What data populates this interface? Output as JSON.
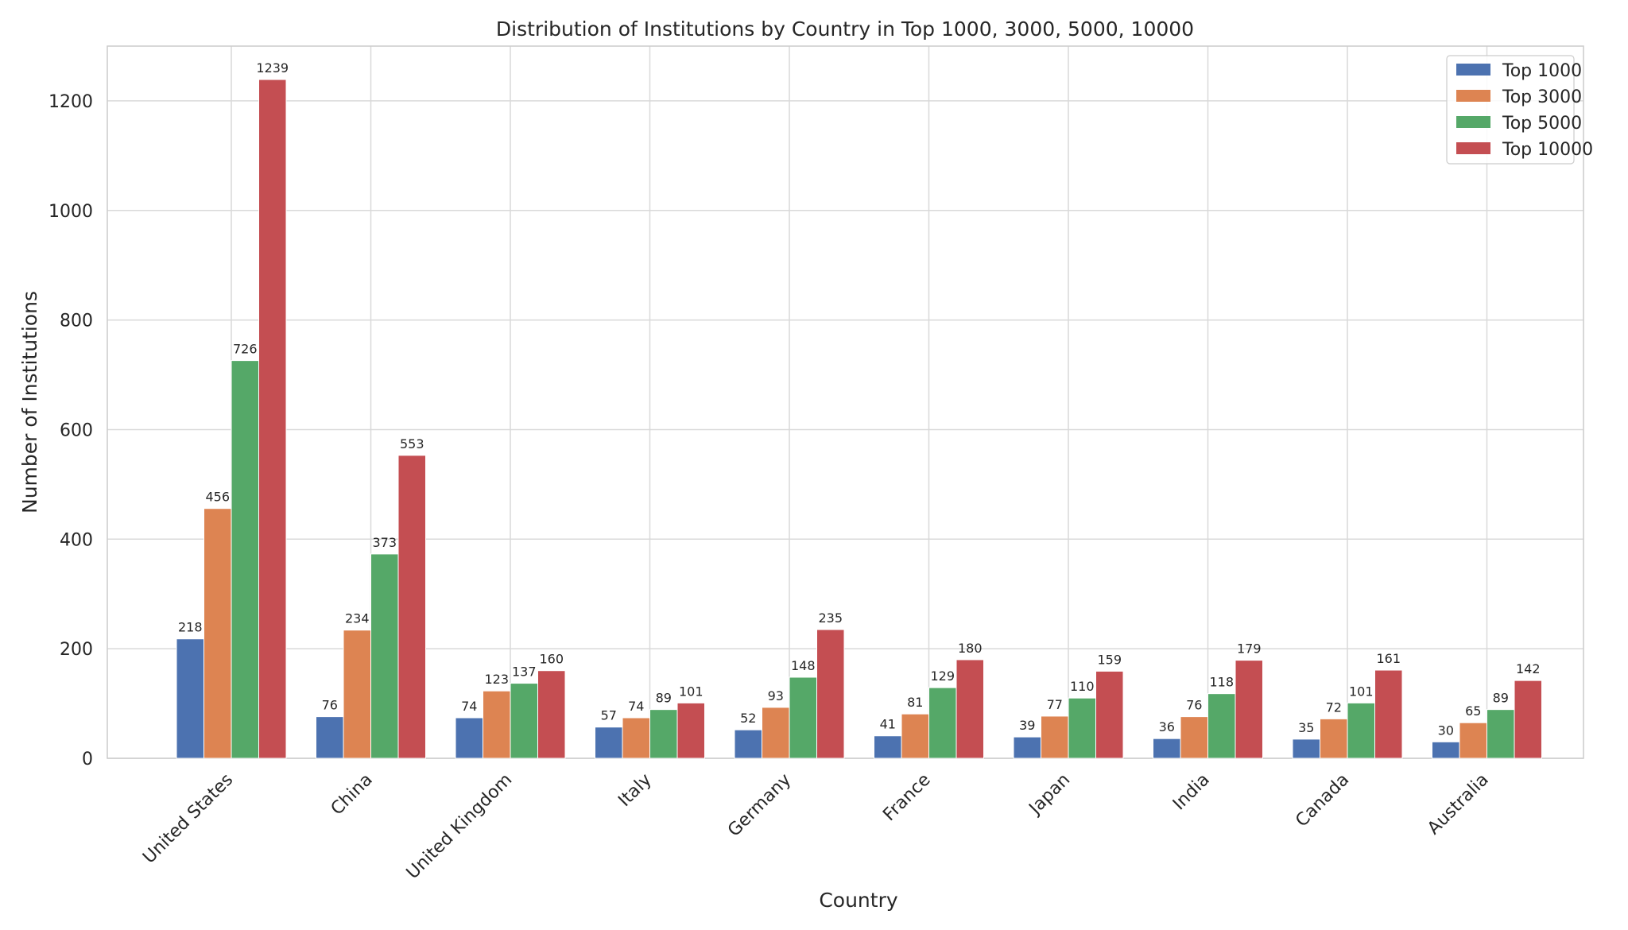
{
  "chart_data": {
    "type": "bar",
    "title": "Distribution of Institutions by Country in Top 1000, 3000, 5000, 10000",
    "xlabel": "Country",
    "ylabel": "Number of Institutions",
    "ylim": [
      0,
      1300
    ],
    "yticks": [
      0,
      200,
      400,
      600,
      800,
      1000,
      1200
    ],
    "grid": true,
    "legend_position": "top-right",
    "categories": [
      "United States",
      "China",
      "United Kingdom",
      "Italy",
      "Germany",
      "France",
      "Japan",
      "India",
      "Canada",
      "Australia"
    ],
    "series": [
      {
        "name": "Top 1000",
        "color": "#4c72b0",
        "values": [
          218,
          76,
          74,
          57,
          52,
          41,
          39,
          36,
          35,
          30
        ]
      },
      {
        "name": "Top 3000",
        "color": "#dd8452",
        "values": [
          456,
          234,
          123,
          74,
          93,
          81,
          77,
          76,
          72,
          65
        ]
      },
      {
        "name": "Top 5000",
        "color": "#55a868",
        "values": [
          726,
          373,
          137,
          89,
          148,
          129,
          110,
          118,
          101,
          89
        ]
      },
      {
        "name": "Top 10000",
        "color": "#c44e52",
        "values": [
          1239,
          553,
          160,
          101,
          235,
          180,
          159,
          179,
          161,
          142
        ]
      }
    ]
  }
}
